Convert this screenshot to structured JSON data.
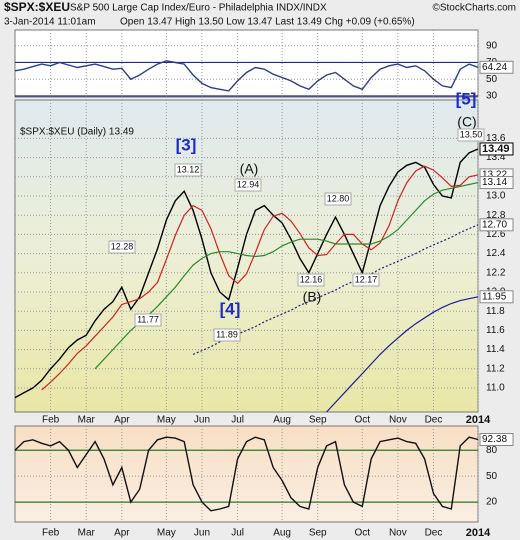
{
  "header": {
    "symbol": "$SPX:$XEU",
    "description": "S&P 500 Large Cap Index/Euro - Philadelphia INDX/INDX",
    "source": "©StockCharts.com",
    "date": "3-Jan-2014 11:01am",
    "quote": "Open 13.47 High 13.50 Low 13.47 Last 13.49 Chg +0.09 (+0.65%)"
  },
  "chart_data": [
    {
      "type": "line",
      "ylim": [
        28.75,
        108.75
      ],
      "yticks": [
        90,
        70,
        50,
        30
      ],
      "grid": true,
      "band_lines": [
        70,
        30
      ],
      "band_color": "#1a2a9a",
      "series": [
        {
          "color": "#2a3f8f",
          "end_label": "64.24",
          "values": [
            60,
            62,
            65,
            68,
            66,
            70,
            67,
            64,
            66,
            68,
            65,
            62,
            63,
            50,
            55,
            62,
            68,
            72,
            70,
            68,
            55,
            45,
            40,
            38,
            36,
            48,
            58,
            64,
            62,
            56,
            52,
            48,
            42,
            38,
            48,
            55,
            58,
            50,
            42,
            38,
            52,
            62,
            66,
            68,
            64,
            66,
            60,
            50,
            42,
            40,
            62,
            68,
            64.24
          ]
        }
      ]
    },
    {
      "type": "line",
      "legend": "$SPX:$XEU (Daily) 13.49",
      "ylim": [
        10.75,
        14.0
      ],
      "grid": true,
      "yticks": [
        {
          "value": 11.0,
          "label": "11.0"
        },
        11.2,
        11.4,
        11.6,
        11.8,
        {
          "value": 12.0,
          "label": "12.0"
        },
        12.2,
        12.4,
        12.6,
        12.8,
        {
          "value": 13.0,
          "label": "13.0"
        },
        13.2,
        13.4,
        13.6
      ],
      "categories": [
        null,
        null,
        null,
        null,
        "Feb",
        null,
        null,
        null,
        "Mar",
        null,
        null,
        null,
        "Apr",
        null,
        null,
        null,
        null,
        "May",
        null,
        null,
        null,
        "Jun",
        null,
        null,
        null,
        "Jul",
        null,
        null,
        null,
        null,
        "Aug",
        null,
        null,
        null,
        "Sep",
        null,
        null,
        null,
        null,
        "Oct",
        null,
        null,
        null,
        "Nov",
        null,
        null,
        null,
        "Dec",
        null,
        null,
        null,
        null,
        "2014"
      ],
      "annotations": [
        "[3]",
        "(A)",
        "(B)",
        "(C)",
        "[4]",
        "[5]"
      ],
      "peak_labels": [
        "13.12",
        "12.94",
        "12.80",
        "12.28",
        "11.77",
        "11.89",
        "12.16",
        "12.17",
        "13.50"
      ],
      "series": [
        {
          "color": "#000000",
          "end_label": "13.49",
          "values": [
            10.9,
            10.95,
            11.0,
            11.08,
            11.2,
            11.3,
            11.42,
            11.5,
            11.55,
            11.7,
            11.82,
            11.9,
            12.05,
            11.82,
            11.95,
            12.2,
            12.45,
            12.75,
            12.95,
            13.05,
            12.85,
            12.55,
            12.2,
            12.0,
            11.92,
            12.25,
            12.6,
            12.85,
            12.9,
            12.8,
            12.72,
            12.55,
            12.35,
            12.2,
            12.4,
            12.6,
            12.78,
            12.6,
            12.4,
            12.2,
            12.55,
            12.9,
            13.1,
            13.25,
            13.32,
            13.35,
            13.3,
            13.12,
            13.0,
            12.98,
            13.35,
            13.45,
            13.49
          ]
        },
        {
          "color": "#d42020",
          "end_label": "13.22",
          "values": [
            null,
            null,
            null,
            10.98,
            11.06,
            11.15,
            11.25,
            11.36,
            11.44,
            11.54,
            11.64,
            11.74,
            11.87,
            11.9,
            11.93,
            12.0,
            12.1,
            12.34,
            12.59,
            12.8,
            12.9,
            12.85,
            12.66,
            12.4,
            12.17,
            12.09,
            12.19,
            12.41,
            12.65,
            12.79,
            12.82,
            12.74,
            12.61,
            12.46,
            12.38,
            12.39,
            12.5,
            12.6,
            12.6,
            12.5,
            12.44,
            12.51,
            12.69,
            12.95,
            13.14,
            13.26,
            13.31,
            13.27,
            13.19,
            13.1,
            13.11,
            13.2,
            13.22
          ]
        },
        {
          "color": "#2a8a2a",
          "end_label": "13.14",
          "values": [
            null,
            null,
            null,
            null,
            null,
            null,
            null,
            null,
            null,
            11.2,
            11.3,
            11.4,
            11.5,
            11.6,
            11.68,
            11.76,
            11.85,
            11.95,
            12.05,
            12.17,
            12.28,
            12.35,
            12.4,
            12.42,
            12.42,
            12.4,
            12.38,
            12.37,
            12.38,
            12.42,
            12.48,
            12.52,
            12.55,
            12.55,
            12.55,
            12.53,
            12.5,
            12.5,
            12.5,
            12.5,
            12.5,
            12.53,
            12.58,
            12.65,
            12.75,
            12.85,
            12.95,
            13.02,
            13.06,
            13.08,
            13.1,
            13.12,
            13.14
          ]
        },
        {
          "color": "#1a237e",
          "dash": true,
          "end_label": "12.70",
          "values": [
            null,
            null,
            null,
            null,
            null,
            null,
            null,
            null,
            null,
            null,
            null,
            null,
            null,
            null,
            null,
            null,
            null,
            null,
            null,
            null,
            11.35,
            11.39,
            11.43,
            11.48,
            11.52,
            11.56,
            11.6,
            11.64,
            11.69,
            11.73,
            11.77,
            11.81,
            11.86,
            11.9,
            11.94,
            11.98,
            12.02,
            12.07,
            12.11,
            12.15,
            12.19,
            12.24,
            12.28,
            12.32,
            12.36,
            12.4,
            12.45,
            12.49,
            12.53,
            12.57,
            12.62,
            12.66,
            12.7
          ]
        },
        {
          "color": "#1a1aa0",
          "end_label": "11.95",
          "values": [
            null,
            null,
            null,
            null,
            null,
            null,
            null,
            null,
            null,
            null,
            null,
            null,
            null,
            null,
            null,
            null,
            null,
            null,
            null,
            null,
            null,
            null,
            null,
            null,
            null,
            null,
            null,
            null,
            null,
            null,
            null,
            null,
            null,
            null,
            null,
            10.75,
            10.85,
            10.95,
            11.05,
            11.15,
            11.25,
            11.35,
            11.44,
            11.52,
            11.6,
            11.67,
            11.73,
            11.79,
            11.84,
            11.88,
            11.91,
            11.93,
            11.95
          ]
        }
      ]
    },
    {
      "type": "line",
      "ylim": [
        -3,
        108
      ],
      "yticks": [
        80,
        50,
        20
      ],
      "grid": true,
      "band_lines": [
        80,
        20
      ],
      "band_color": "#2a7a2a",
      "categories": [
        null,
        null,
        null,
        null,
        "Feb",
        null,
        null,
        null,
        "Mar",
        null,
        null,
        null,
        "Apr",
        null,
        null,
        null,
        null,
        "May",
        null,
        null,
        null,
        "Jun",
        null,
        null,
        null,
        "Jul",
        null,
        null,
        null,
        null,
        "Aug",
        null,
        null,
        null,
        "Sep",
        null,
        null,
        null,
        null,
        "Oct",
        null,
        null,
        null,
        "Nov",
        null,
        null,
        null,
        "Dec",
        null,
        null,
        null,
        null,
        "2014"
      ],
      "series": [
        {
          "color": "#111111",
          "end_label": "92.38",
          "values": [
            80,
            90,
            92,
            88,
            85,
            90,
            80,
            60,
            75,
            90,
            70,
            40,
            60,
            20,
            35,
            80,
            92,
            95,
            94,
            90,
            40,
            20,
            10,
            12,
            15,
            70,
            90,
            95,
            92,
            60,
            45,
            25,
            15,
            12,
            60,
            85,
            90,
            40,
            20,
            15,
            70,
            90,
            92,
            94,
            90,
            88,
            70,
            30,
            15,
            12,
            85,
            95,
            92.38
          ]
        }
      ]
    }
  ]
}
